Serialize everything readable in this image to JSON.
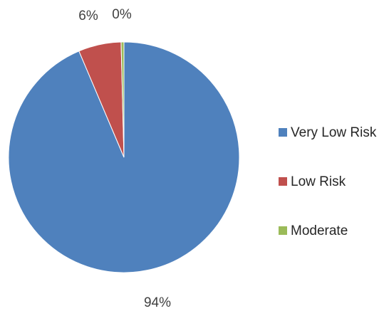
{
  "chart_data": {
    "type": "pie",
    "title": "",
    "categories": [
      "Very Low Risk",
      "Low Risk",
      "Moderate"
    ],
    "values": [
      94,
      6,
      0.4
    ],
    "data_labels": [
      "94%",
      "6%",
      "0%"
    ],
    "colors": [
      "#4f81bd",
      "#c0504d",
      "#9bbb59"
    ],
    "legend": {
      "position": "right",
      "entries": [
        "Very Low Risk",
        "Low Risk",
        "Moderate"
      ]
    },
    "start_angle": "12 o'clock",
    "direction": "clockwise"
  }
}
